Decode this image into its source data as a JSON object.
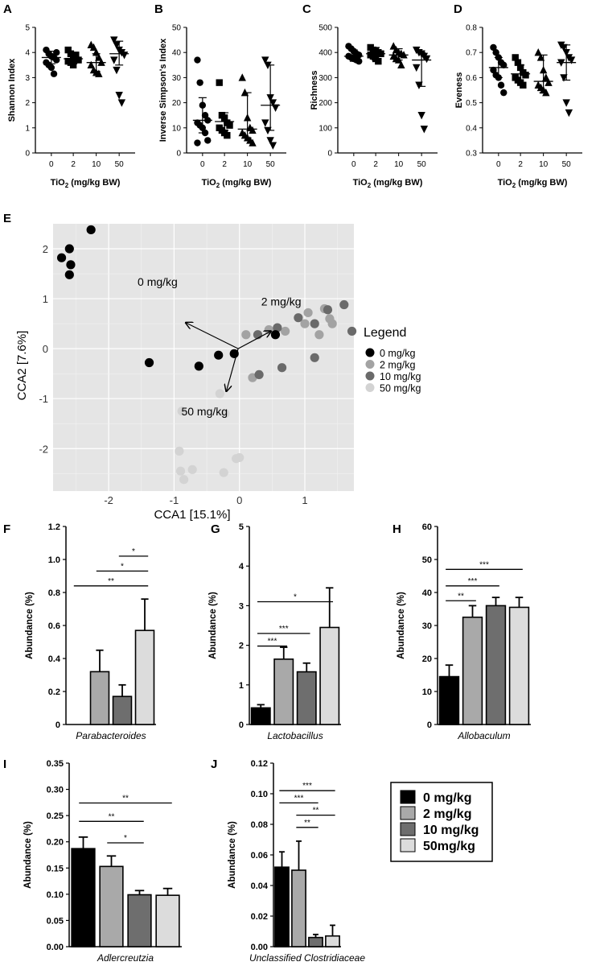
{
  "panel_letters": [
    "A",
    "B",
    "C",
    "D",
    "E",
    "F",
    "G",
    "H",
    "I",
    "J"
  ],
  "dose_axis_label": "TiO2 (mg/kg BW)",
  "group_ticks": [
    "0",
    "2",
    "10",
    "50"
  ],
  "legend_box": [
    "0 mg/kg",
    "2 mg/kg",
    "10 mg/kg",
    "50mg/kg"
  ],
  "colors": {
    "g0": "#000000",
    "g2": "#a9a9a9",
    "g10": "#6e6e6e",
    "g50": "#dcdcdc"
  },
  "chart_data": [
    {
      "id": "A",
      "type": "scatter",
      "ylabel": "Shannon Index",
      "xlabel": "TiO2 (mg/kg BW)",
      "categories": [
        "0",
        "2",
        "10",
        "50"
      ],
      "ylim": [
        0,
        5
      ],
      "yticks": [
        0,
        1,
        2,
        3,
        4,
        5
      ],
      "markers": [
        "circle",
        "square",
        "triangle-up",
        "triangle-down"
      ],
      "series": [
        {
          "values": [
            4.1,
            3.95,
            3.85,
            3.8,
            3.7,
            3.6,
            3.5,
            3.4,
            3.15,
            4.0
          ],
          "mean": 3.8,
          "err": [
            3.55,
            4.05
          ]
        },
        {
          "values": [
            4.1,
            3.95,
            3.8,
            3.75,
            3.7,
            3.65,
            3.6,
            3.5,
            3.9
          ],
          "mean": 3.75,
          "err": [
            3.55,
            3.95
          ]
        },
        {
          "values": [
            4.3,
            4.2,
            4.0,
            3.8,
            3.6,
            3.5,
            3.3,
            3.2,
            3.15
          ],
          "mean": 3.6,
          "err": [
            3.25,
            3.95
          ]
        },
        {
          "values": [
            4.5,
            4.3,
            4.1,
            4.0,
            3.9,
            3.7,
            3.3,
            2.3,
            2.0
          ],
          "mean": 3.95,
          "err": [
            3.5,
            4.45
          ]
        }
      ]
    },
    {
      "id": "B",
      "type": "scatter",
      "ylabel": "Inverse Simpson's Index",
      "xlabel": "TiO2 (mg/kg BW)",
      "categories": [
        "0",
        "2",
        "10",
        "50"
      ],
      "ylim": [
        0,
        50
      ],
      "yticks": [
        0,
        10,
        20,
        30,
        40,
        50
      ],
      "markers": [
        "circle",
        "square",
        "triangle-up",
        "triangle-down"
      ],
      "series": [
        {
          "values": [
            37,
            28,
            19,
            15,
            13,
            12,
            11,
            10,
            8,
            5,
            4
          ],
          "mean": 13,
          "err": [
            8,
            22
          ]
        },
        {
          "values": [
            28,
            15,
            14,
            12,
            11,
            10,
            9,
            8,
            7
          ],
          "mean": 12.5,
          "err": [
            9,
            16
          ]
        },
        {
          "values": [
            30,
            24,
            14,
            10,
            9,
            8,
            7,
            6,
            5,
            4
          ],
          "mean": 9.5,
          "err": [
            6,
            24
          ]
        },
        {
          "values": [
            37,
            35,
            22,
            20,
            18,
            12,
            9,
            5,
            3
          ],
          "mean": 19,
          "err": [
            9,
            35
          ]
        }
      ]
    },
    {
      "id": "C",
      "type": "scatter",
      "ylabel": "Richness",
      "xlabel": "TiO2 (mg/kg BW)",
      "categories": [
        "0",
        "2",
        "10",
        "50"
      ],
      "ylim": [
        0,
        500
      ],
      "yticks": [
        0,
        100,
        200,
        300,
        400,
        500
      ],
      "markers": [
        "circle",
        "square",
        "triangle-up",
        "triangle-down"
      ],
      "series": [
        {
          "values": [
            425,
            415,
            405,
            395,
            390,
            385,
            380,
            375,
            370,
            365
          ],
          "mean": 385,
          "err": [
            365,
            410
          ]
        },
        {
          "values": [
            420,
            410,
            405,
            400,
            395,
            390,
            385,
            375,
            365
          ],
          "mean": 395,
          "err": [
            370,
            420
          ]
        },
        {
          "values": [
            425,
            410,
            400,
            395,
            390,
            385,
            375,
            370,
            350
          ],
          "mean": 390,
          "err": [
            370,
            415
          ]
        },
        {
          "values": [
            410,
            400,
            395,
            385,
            375,
            340,
            270,
            150,
            95
          ],
          "mean": 370,
          "err": [
            265,
            400
          ]
        }
      ]
    },
    {
      "id": "D",
      "type": "scatter",
      "ylabel": "Eveness",
      "xlabel": "TiO2 (mg/kg BW)",
      "categories": [
        "0",
        "2",
        "10",
        "50"
      ],
      "ylim": [
        0.3,
        0.8
      ],
      "yticks": [
        0.3,
        0.4,
        0.5,
        0.6,
        0.7,
        0.8
      ],
      "markers": [
        "circle",
        "square",
        "triangle-up",
        "triangle-down"
      ],
      "series": [
        {
          "values": [
            0.72,
            0.7,
            0.68,
            0.66,
            0.65,
            0.63,
            0.61,
            0.6,
            0.57,
            0.54
          ],
          "mean": 0.64,
          "err": [
            0.6,
            0.68
          ]
        },
        {
          "values": [
            0.68,
            0.66,
            0.64,
            0.62,
            0.61,
            0.6,
            0.59,
            0.58,
            0.57
          ],
          "mean": 0.615,
          "err": [
            0.58,
            0.65
          ]
        },
        {
          "values": [
            0.7,
            0.68,
            0.63,
            0.6,
            0.58,
            0.57,
            0.56,
            0.55,
            0.54
          ],
          "mean": 0.585,
          "err": [
            0.54,
            0.69
          ]
        },
        {
          "values": [
            0.73,
            0.72,
            0.7,
            0.68,
            0.67,
            0.66,
            0.6,
            0.5,
            0.46
          ],
          "mean": 0.66,
          "err": [
            0.59,
            0.73
          ]
        }
      ]
    },
    {
      "id": "E",
      "type": "scatter",
      "xlabel": "CCA1  [15.1%]",
      "ylabel": "CCA2  [7.6%]",
      "xlim": [
        -2.85,
        1.75
      ],
      "ylim": [
        -2.85,
        2.5
      ],
      "xticks": [
        -2,
        -1,
        0,
        1
      ],
      "yticks": [
        -2,
        -1,
        0,
        1,
        2
      ],
      "legend_title": "Legend",
      "legend": [
        "0 mg/kg",
        "2 mg/kg",
        "10 mg/kg",
        "50 mg/kg"
      ],
      "series": [
        {
          "name": "0 mg/kg",
          "points": [
            [
              -2.27,
              2.38
            ],
            [
              -2.6,
              2.0
            ],
            [
              -2.72,
              1.82
            ],
            [
              -2.58,
              1.68
            ],
            [
              -2.6,
              1.48
            ],
            [
              -1.38,
              -0.28
            ],
            [
              -0.62,
              -0.35
            ],
            [
              -0.32,
              -0.13
            ],
            [
              -0.08,
              -0.1
            ],
            [
              0.55,
              0.28
            ]
          ]
        },
        {
          "name": "2 mg/kg",
          "points": [
            [
              0.1,
              0.28
            ],
            [
              0.45,
              0.38
            ],
            [
              0.7,
              0.35
            ],
            [
              1.0,
              0.5
            ],
            [
              1.05,
              0.72
            ],
            [
              1.3,
              0.8
            ],
            [
              1.38,
              0.6
            ],
            [
              1.42,
              0.5
            ],
            [
              1.22,
              0.28
            ],
            [
              0.2,
              -0.58
            ]
          ]
        },
        {
          "name": "10 mg/kg",
          "points": [
            [
              0.28,
              0.28
            ],
            [
              0.58,
              0.42
            ],
            [
              0.9,
              0.62
            ],
            [
              1.15,
              0.5
            ],
            [
              1.35,
              0.78
            ],
            [
              1.6,
              0.88
            ],
            [
              1.72,
              0.35
            ],
            [
              1.15,
              -0.18
            ],
            [
              0.65,
              -0.38
            ],
            [
              0.3,
              -0.52
            ]
          ]
        },
        {
          "name": "50 mg/kg",
          "points": [
            [
              -0.3,
              -0.9
            ],
            [
              -0.88,
              -1.25
            ],
            [
              -0.22,
              -1.3
            ],
            [
              -0.92,
              -2.05
            ],
            [
              -0.05,
              -2.2
            ],
            [
              0.0,
              -2.18
            ],
            [
              -0.72,
              -2.42
            ],
            [
              -0.24,
              -2.48
            ],
            [
              -0.85,
              -2.62
            ],
            [
              -0.9,
              -2.45
            ]
          ]
        }
      ],
      "arrows": [
        {
          "label": "0 mg/kg",
          "to": [
            -0.82,
            0.52
          ]
        },
        {
          "label": "2 mg/kg",
          "to": [
            0.48,
            0.35
          ]
        },
        {
          "label": "50 mg/kg",
          "to": [
            -0.2,
            -0.85
          ]
        }
      ],
      "arrow_origin": [
        -0.02,
        0.0
      ]
    },
    {
      "id": "F",
      "type": "bar",
      "ylabel": "Abundance (%)",
      "xlabel": "Parabacteroides",
      "categories": [
        "0 mg/kg",
        "2 mg/kg",
        "10 mg/kg",
        "50mg/kg"
      ],
      "values": [
        0.0,
        0.32,
        0.17,
        0.57
      ],
      "errors": [
        0.0,
        0.13,
        0.07,
        0.19
      ],
      "ylim": [
        0,
        1.2
      ],
      "yticks": [
        "0",
        "0.2",
        "0.4",
        "0.6",
        "0.8",
        "1.0",
        "1.2"
      ],
      "significance": [
        {
          "from": 2,
          "to": 3,
          "label": "*",
          "y": 1.02
        },
        {
          "from": 1,
          "to": 3,
          "label": "*",
          "y": 0.93
        },
        {
          "from": 0,
          "to": 3,
          "label": "**",
          "y": 0.84
        }
      ]
    },
    {
      "id": "G",
      "type": "bar",
      "ylabel": "Abundance (%)",
      "xlabel": "Lactobacillus",
      "categories": [
        "0 mg/kg",
        "2 mg/kg",
        "10 mg/kg",
        "50mg/kg"
      ],
      "values": [
        0.42,
        1.65,
        1.33,
        2.45
      ],
      "errors": [
        0.08,
        0.3,
        0.22,
        1.0
      ],
      "ylim": [
        0,
        5
      ],
      "yticks": [
        "0",
        "1",
        "2",
        "3",
        "4",
        "5"
      ],
      "significance": [
        {
          "from": 0,
          "to": 3,
          "label": "*",
          "y": 3.1
        },
        {
          "from": 0,
          "to": 2,
          "label": "***",
          "y": 2.3
        },
        {
          "from": 0,
          "to": 1,
          "label": "***",
          "y": 1.98
        }
      ]
    },
    {
      "id": "H",
      "type": "bar",
      "ylabel": "Abundance (%)",
      "xlabel": "Allobaculum",
      "categories": [
        "0 mg/kg",
        "2 mg/kg",
        "10 mg/kg",
        "50mg/kg"
      ],
      "values": [
        14.5,
        32.5,
        36.0,
        35.5
      ],
      "errors": [
        3.5,
        3.5,
        2.5,
        3.0
      ],
      "ylim": [
        0,
        60
      ],
      "yticks": [
        "0",
        "10",
        "20",
        "30",
        "40",
        "50",
        "60"
      ],
      "significance": [
        {
          "from": 0,
          "to": 3,
          "label": "***",
          "y": 47
        },
        {
          "from": 0,
          "to": 2,
          "label": "***",
          "y": 42
        },
        {
          "from": 0,
          "to": 1,
          "label": "**",
          "y": 37.5
        }
      ]
    },
    {
      "id": "I",
      "type": "bar",
      "ylabel": "Abundance (%)",
      "xlabel": "Adlercreutzia",
      "categories": [
        "0 mg/kg",
        "2 mg/kg",
        "10 mg/kg",
        "50mg/kg"
      ],
      "values": [
        0.187,
        0.153,
        0.099,
        0.098
      ],
      "errors": [
        0.022,
        0.02,
        0.008,
        0.013
      ],
      "ylim": [
        0,
        0.35
      ],
      "yticks": [
        "0.00",
        "0.05",
        "0.10",
        "0.15",
        "0.20",
        "0.25",
        "0.30",
        "0.35"
      ],
      "significance": [
        {
          "from": 0,
          "to": 3,
          "label": "**",
          "y": 0.274
        },
        {
          "from": 0,
          "to": 2,
          "label": "**",
          "y": 0.239
        },
        {
          "from": 1,
          "to": 2,
          "label": "*",
          "y": 0.198
        }
      ]
    },
    {
      "id": "J",
      "type": "bar",
      "ylabel": "Abundance (%)",
      "xlabel": "Unclassified Clostridiaceae",
      "categories": [
        "0 mg/kg",
        "2 mg/kg",
        "10 mg/kg",
        "50mg/kg"
      ],
      "values": [
        0.052,
        0.05,
        0.006,
        0.007
      ],
      "errors": [
        0.01,
        0.019,
        0.002,
        0.007
      ],
      "ylim": [
        0,
        0.12
      ],
      "yticks": [
        "0.00",
        "0.02",
        "0.04",
        "0.06",
        "0.08",
        "0.10",
        "0.12"
      ],
      "significance": [
        {
          "from": 0,
          "to": 3,
          "label": "***",
          "y": 0.102
        },
        {
          "from": 0,
          "to": 2,
          "label": "***",
          "y": 0.094
        },
        {
          "from": 1,
          "to": 3,
          "label": "**",
          "y": 0.086
        },
        {
          "from": 1,
          "to": 2,
          "label": "**",
          "y": 0.078
        }
      ]
    }
  ]
}
